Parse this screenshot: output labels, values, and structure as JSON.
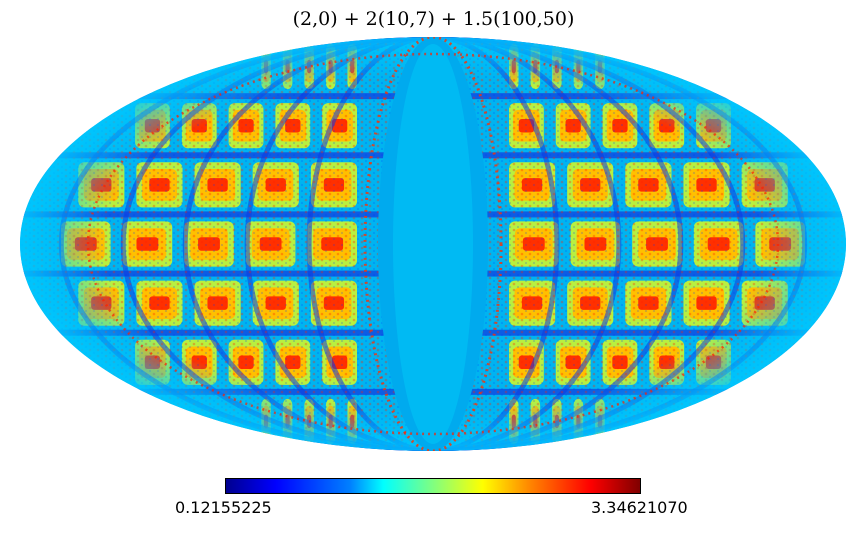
{
  "chart_data": {
    "type": "heatmap",
    "projection": "mollweide",
    "title": "(2,0) + 2(10,7) + 1.5(100,50)",
    "colormap": "jet",
    "colorbar": {
      "min_label": "0.12155225",
      "max_label": "3.34621070",
      "min": 0.12155225,
      "max": 3.3462107,
      "orientation": "horizontal",
      "placement": "bottom"
    },
    "colors": {
      "background": "#ffffff",
      "map_base": "#00b4f0",
      "low": "#0000ff",
      "high": "#ff0000"
    }
  }
}
